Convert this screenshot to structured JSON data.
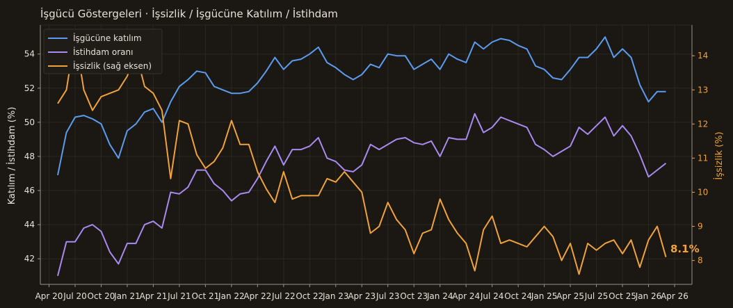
{
  "colors": {
    "background": "#1b1813",
    "axis": "#9a9488",
    "grid": "#2a2620",
    "text": "#e6e1d8",
    "participation": "#5b9cf0",
    "employment": "#a98af0",
    "unemployment": "#f0a23c"
  },
  "chart_data": {
    "type": "line",
    "title": "İşgücü Göstergeleri · İşsizlik / İşgücüne Katılım / İstihdam",
    "ylabel_left": "Katılım / İstihdam (%)",
    "ylabel_right": "İşsizlik (%)",
    "ylim_left": [
      40.5,
      55.7
    ],
    "ylim_right": [
      7.3,
      14.9
    ],
    "yticks_left": [
      42,
      44,
      46,
      48,
      50,
      52,
      54
    ],
    "yticks_right": [
      8,
      9,
      10,
      11,
      12,
      13,
      14
    ],
    "xticks": [
      "Apr 20",
      "Jul 20",
      "Oct 20",
      "Jan 21",
      "Apr 21",
      "Jul 21",
      "Oct 21",
      "Jan 22",
      "Apr 22",
      "Jul 22",
      "Oct 22",
      "Jan 23",
      "Apr 23",
      "Jul 23",
      "Oct 23",
      "Jan 24",
      "Apr 24",
      "Jul 24",
      "Oct 24",
      "Jan 25",
      "Apr 25",
      "Jul 25",
      "Oct 25",
      "Jan 26",
      "Apr 26"
    ],
    "x_start": "2020-05",
    "legend_position": "top-left",
    "end_label": "8.1%",
    "series": [
      {
        "name": "İşgücüne katılım",
        "axis": "left",
        "values": [
          46.9,
          49.4,
          50.3,
          50.4,
          50.2,
          49.9,
          48.7,
          47.9,
          49.5,
          49.9,
          50.6,
          50.8,
          50.0,
          51.2,
          52.1,
          52.5,
          53.0,
          52.9,
          52.1,
          51.9,
          51.7,
          51.7,
          51.8,
          52.3,
          53.0,
          53.8,
          53.1,
          53.6,
          53.7,
          54.0,
          54.4,
          53.5,
          53.2,
          52.8,
          52.5,
          52.8,
          53.4,
          53.2,
          54.0,
          53.9,
          53.9,
          53.1,
          53.4,
          53.7,
          53.1,
          54.0,
          53.7,
          53.5,
          54.7,
          54.3,
          54.7,
          54.9,
          54.8,
          54.5,
          54.3,
          53.3,
          53.1,
          52.6,
          52.5,
          53.1,
          53.8,
          53.8,
          54.3,
          55.0,
          53.8,
          54.3,
          53.8,
          52.2,
          51.2,
          51.8,
          51.8
        ]
      },
      {
        "name": "İstihdam oranı",
        "axis": "left",
        "values": [
          41.0,
          43.0,
          43.0,
          43.8,
          44.0,
          43.6,
          42.4,
          41.7,
          42.9,
          42.9,
          44.0,
          44.2,
          43.8,
          45.9,
          45.8,
          46.2,
          47.2,
          47.2,
          46.4,
          46.0,
          45.4,
          45.8,
          45.9,
          46.7,
          47.7,
          48.6,
          47.5,
          48.4,
          48.4,
          48.6,
          49.1,
          47.9,
          47.7,
          47.2,
          47.1,
          47.5,
          48.7,
          48.4,
          48.7,
          49.0,
          49.1,
          48.8,
          48.7,
          48.9,
          48.0,
          49.1,
          49.0,
          49.0,
          50.5,
          49.4,
          49.7,
          50.3,
          50.1,
          49.9,
          49.7,
          48.7,
          48.4,
          48.0,
          48.3,
          48.6,
          49.7,
          49.3,
          49.8,
          50.3,
          49.2,
          49.8,
          49.2,
          48.1,
          46.8,
          47.2,
          47.6
        ]
      },
      {
        "name": "İşsizlik (sağ eksen)",
        "axis": "right",
        "values": [
          12.6,
          13.0,
          14.6,
          13.0,
          12.4,
          12.8,
          12.9,
          13.0,
          13.4,
          14.1,
          13.1,
          12.9,
          12.4,
          10.4,
          12.1,
          12.0,
          11.1,
          10.7,
          10.9,
          11.3,
          12.1,
          11.4,
          11.4,
          10.6,
          10.1,
          9.7,
          10.6,
          9.8,
          9.9,
          9.9,
          9.9,
          10.4,
          10.3,
          10.6,
          10.3,
          10.0,
          8.8,
          9.0,
          9.7,
          9.2,
          8.9,
          8.2,
          8.8,
          8.9,
          9.8,
          9.2,
          8.8,
          8.5,
          7.7,
          8.9,
          9.3,
          8.5,
          8.6,
          8.5,
          8.4,
          8.7,
          9.0,
          8.7,
          8.0,
          8.5,
          7.6,
          8.5,
          8.3,
          8.5,
          8.6,
          8.2,
          8.6,
          7.8,
          8.6,
          9.0,
          8.1
        ]
      }
    ]
  }
}
